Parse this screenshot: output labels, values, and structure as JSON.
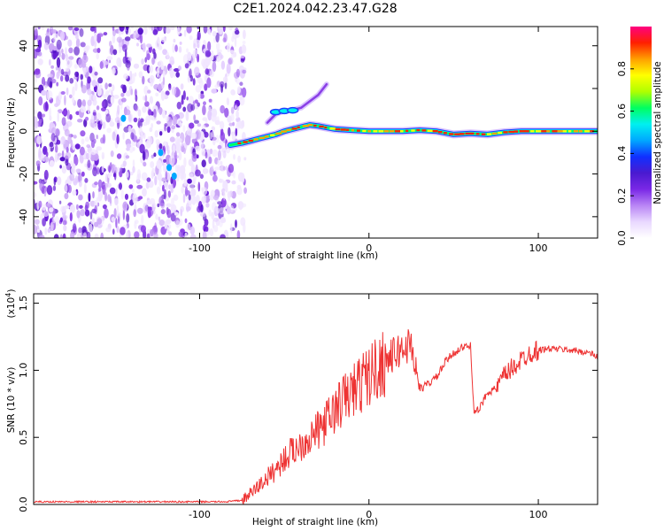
{
  "figure": {
    "title": "C2E1.2024.042.23.47.G28"
  },
  "chart_data": [
    {
      "type": "heatmap",
      "xlabel": "Height of straight line (km)",
      "ylabel": "Frequency (Hz)",
      "xlim": [
        -198,
        135
      ],
      "ylim": [
        -50,
        49
      ],
      "xticks": [
        -100,
        0,
        100
      ],
      "yticks": [
        -40,
        -20,
        0,
        20,
        40
      ],
      "noise_region_x": [
        -198,
        -73
      ],
      "signal_trace": {
        "x": [
          -82,
          -75,
          -70,
          -65,
          -60,
          -55,
          -50,
          -45,
          -40,
          -35,
          -30,
          -20,
          -10,
          0,
          10,
          20,
          30,
          40,
          50,
          60,
          70,
          80,
          90,
          100,
          110,
          120,
          135
        ],
        "y": [
          -6.5,
          -5.5,
          -4.5,
          -3.5,
          -2.5,
          -1.5,
          0,
          1,
          2,
          3,
          2.5,
          1,
          0.5,
          0,
          0,
          0,
          0.5,
          0,
          -1.5,
          -1,
          -1.5,
          -0.5,
          0,
          0,
          0,
          0,
          0
        ]
      },
      "upper_branch": {
        "x": [
          -60,
          -55,
          -50,
          -45,
          -40,
          -35,
          -30,
          -25
        ],
        "y": [
          4,
          8,
          9.5,
          10,
          11,
          14,
          17,
          22
        ]
      },
      "colorbar": {
        "label": "Normalized spectral amplitude",
        "range": [
          0.0,
          1.0
        ],
        "ticks": [
          0.0,
          0.2,
          0.4,
          0.6,
          0.8
        ],
        "tick_labels": [
          "0.0",
          "0.2",
          "0.4",
          "0.6",
          "0.8"
        ],
        "colormap": [
          "#ffffff",
          "#e9d8ff",
          "#b985f5",
          "#7a28e6",
          "#4a1ad0",
          "#1030ff",
          "#00a8ff",
          "#00f0f0",
          "#00ff60",
          "#b0ff00",
          "#ffff00",
          "#ffa000",
          "#ff2000",
          "#ff0080"
        ]
      }
    },
    {
      "type": "line",
      "xlabel": "Height of straight line (km)",
      "ylabel": "SNR (10 * v/v)",
      "scale_label": "(x10",
      "scale_exponent": "4",
      "scale_suffix": ")",
      "xlim": [
        -198,
        135
      ],
      "ylim": [
        0,
        1.57
      ],
      "xticks": [
        -100,
        0,
        100
      ],
      "yticks": [
        0.0,
        0.5,
        1.0,
        1.5
      ],
      "ytick_labels": [
        "0.0",
        "0.5",
        "1.0",
        "1.5"
      ],
      "color": "#ee3333",
      "series": [
        {
          "x": [
            -198,
            -180,
            -160,
            -140,
            -120,
            -100,
            -85,
            -75,
            -70,
            -65,
            -60,
            -55,
            -50,
            -45,
            -40,
            -35,
            -30,
            -25,
            -20,
            -15,
            -10,
            -5,
            0,
            5,
            10,
            15,
            20,
            25,
            30,
            35,
            40,
            45,
            50,
            55,
            60,
            62,
            65,
            70,
            75,
            80,
            85,
            90,
            95,
            100,
            105,
            110,
            120,
            130,
            135
          ],
          "y": [
            0.02,
            0.02,
            0.02,
            0.02,
            0.02,
            0.02,
            0.02,
            0.03,
            0.08,
            0.14,
            0.2,
            0.26,
            0.34,
            0.4,
            0.45,
            0.5,
            0.55,
            0.62,
            0.7,
            0.78,
            0.84,
            0.9,
            0.96,
            1.02,
            1.07,
            1.12,
            1.16,
            1.2,
            0.86,
            0.9,
            0.95,
            1.06,
            1.13,
            1.17,
            1.18,
            0.7,
            0.7,
            0.84,
            0.86,
            0.96,
            1.02,
            1.08,
            1.13,
            1.15,
            1.16,
            1.16,
            1.15,
            1.13,
            1.1
          ]
        }
      ]
    }
  ]
}
